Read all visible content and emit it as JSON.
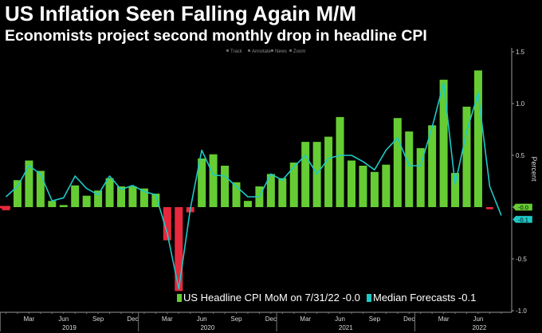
{
  "title": "US Inflation Seen Falling Again M/M",
  "subtitle": "Economists project second monthly drop in headline CPI",
  "toolbar": [
    "Track",
    "Annotate",
    "News",
    "Zoom"
  ],
  "colors": {
    "positive": "#66cc33",
    "negative": "#e8283c",
    "line": "#1ec8c8",
    "background": "#000000"
  },
  "chart_data": {
    "type": "bar+line",
    "x": [
      "2019-01",
      "2019-02",
      "2019-03",
      "2019-04",
      "2019-05",
      "2019-06",
      "2019-07",
      "2019-08",
      "2019-09",
      "2019-10",
      "2019-11",
      "2019-12",
      "2020-01",
      "2020-02",
      "2020-03",
      "2020-04",
      "2020-05",
      "2020-06",
      "2020-07",
      "2020-08",
      "2020-09",
      "2020-10",
      "2020-11",
      "2020-12",
      "2021-01",
      "2021-02",
      "2021-03",
      "2021-04",
      "2021-05",
      "2021-06",
      "2021-07",
      "2021-08",
      "2021-09",
      "2021-10",
      "2021-11",
      "2021-12",
      "2022-01",
      "2022-02",
      "2022-03",
      "2022-04",
      "2022-05",
      "2022-06",
      "2022-07",
      "2022-08"
    ],
    "series": [
      {
        "name": "US Headline CPI MoM  on 7/31/22 -0.0",
        "type": "bar",
        "values": [
          -0.03,
          0.26,
          0.45,
          0.35,
          0.06,
          0.02,
          0.21,
          0.11,
          0.16,
          0.28,
          0.2,
          0.2,
          0.18,
          0.13,
          -0.32,
          -0.81,
          -0.05,
          0.47,
          0.51,
          0.4,
          0.24,
          0.06,
          0.2,
          0.32,
          0.28,
          0.43,
          0.63,
          0.63,
          0.68,
          0.87,
          0.45,
          0.4,
          0.34,
          0.41,
          0.86,
          0.73,
          0.57,
          0.79,
          1.23,
          0.33,
          0.97,
          1.32,
          -0.02,
          null
        ]
      },
      {
        "name": "Median Forecasts -0.1",
        "type": "line",
        "values": [
          0.1,
          0.2,
          0.4,
          0.32,
          0.06,
          0.09,
          0.3,
          0.18,
          0.12,
          0.3,
          0.17,
          0.21,
          0.15,
          0.12,
          -0.25,
          -0.79,
          -0.02,
          0.55,
          0.31,
          0.3,
          0.2,
          0.1,
          0.1,
          0.32,
          0.26,
          0.39,
          0.5,
          0.32,
          0.47,
          0.5,
          0.5,
          0.44,
          0.36,
          0.55,
          0.67,
          0.4,
          0.4,
          0.77,
          1.2,
          0.22,
          0.73,
          1.1,
          0.2,
          -0.08
        ]
      }
    ],
    "y_ticks": [
      "1.5",
      "1.0",
      "0.5",
      "0",
      "-0.5",
      "-1.0"
    ],
    "ylim": [
      -1.0,
      1.5
    ],
    "ylabel": "Percent",
    "x_tick_labels": [
      "Mar",
      "Jun",
      "Sep",
      "Dec",
      "Mar",
      "Jun",
      "Sep",
      "Dec",
      "Mar",
      "Jun",
      "Sep",
      "Dec",
      "Mar",
      "Jun"
    ],
    "year_labels": [
      "2019",
      "2020",
      "2021",
      "2022"
    ],
    "end_tags": [
      {
        "label": "-0.0",
        "series": "US Headline CPI MoM  on 7/31/22 -0.0"
      },
      {
        "label": "-0.1",
        "series": "Median Forecasts -0.1"
      }
    ],
    "legend_position": "bottom-right",
    "grid": false
  }
}
